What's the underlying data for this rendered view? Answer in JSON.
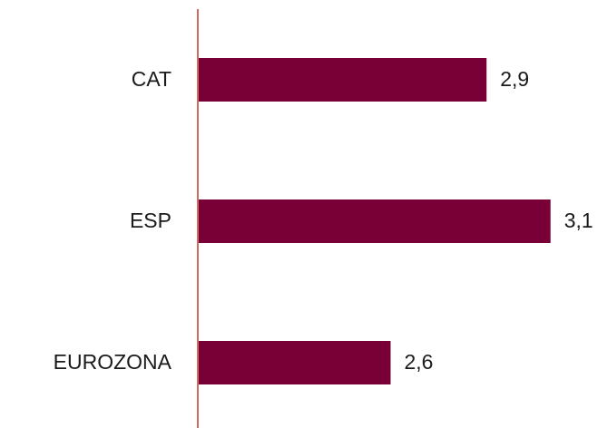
{
  "chart_data": {
    "type": "hbar",
    "categories": [
      "CAT",
      "ESP",
      "EUROZONA"
    ],
    "values": [
      2.9,
      3.1,
      2.6
    ],
    "value_labels": [
      "2,9",
      "3,1",
      "2,6"
    ],
    "color": "#780036",
    "xlim": [
      2.0,
      3.2
    ]
  }
}
